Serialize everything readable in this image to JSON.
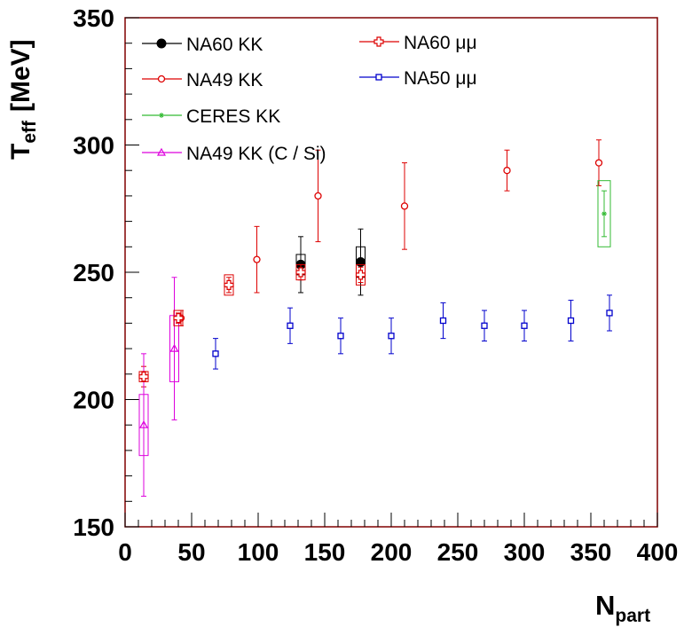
{
  "chart_data": {
    "type": "scatter",
    "title": "",
    "xlabel": {
      "main": "N",
      "sub": "part"
    },
    "ylabel": {
      "main": "T",
      "sub": "eff",
      "unit": "[MeV]"
    },
    "xlim": [
      0,
      400
    ],
    "ylim": [
      150,
      350
    ],
    "xticks": [
      0,
      50,
      100,
      150,
      200,
      250,
      300,
      350,
      400
    ],
    "yticks": [
      150,
      200,
      250,
      300,
      350
    ],
    "grid": false,
    "frame_color": "#800000",
    "series": [
      {
        "name": "NA60 KK",
        "color": "#000000",
        "marker": "filled-circle",
        "points": [
          {
            "x": 132,
            "y": 253,
            "err": 11,
            "sys": 4
          },
          {
            "x": 177,
            "y": 254,
            "err": 13,
            "sys": 6
          }
        ]
      },
      {
        "name": "NA49 KK",
        "color": "#dd0000",
        "marker": "open-circle",
        "points": [
          {
            "x": 14,
            "y": 209,
            "err": 4
          },
          {
            "x": 42,
            "y": 232,
            "err": 3
          },
          {
            "x": 99,
            "y": 255,
            "err": 13
          },
          {
            "x": 145,
            "y": 280,
            "err": 18
          },
          {
            "x": 210,
            "y": 276,
            "err": 17
          },
          {
            "x": 287,
            "y": 290,
            "err": 8
          },
          {
            "x": 356,
            "y": 293,
            "err": 9
          }
        ]
      },
      {
        "name": "CERES KK",
        "color": "#33bb33",
        "marker": "star",
        "points": [
          {
            "x": 360,
            "y": 273,
            "err": 9,
            "sys": 13
          }
        ]
      },
      {
        "name": "NA49 KK (C / Si)",
        "color": "#dd00dd",
        "marker": "open-triangle",
        "points": [
          {
            "x": 14,
            "y": 190,
            "err": 28,
            "sys": 12
          },
          {
            "x": 37,
            "y": 220,
            "err": 28,
            "sys": 13
          }
        ]
      },
      {
        "name": "NA60 μμ",
        "color": "#dd0000",
        "marker": "open-cross",
        "points": [
          {
            "x": 14,
            "y": 209,
            "err": 2,
            "sys": 2
          },
          {
            "x": 40,
            "y": 232,
            "err": 2,
            "sys": 3
          },
          {
            "x": 78,
            "y": 245,
            "err": 3,
            "sys": 4
          },
          {
            "x": 132,
            "y": 250,
            "err": 3,
            "sys": 3
          },
          {
            "x": 177,
            "y": 249,
            "err": 3,
            "sys": 4
          }
        ]
      },
      {
        "name": "NA50 μμ",
        "color": "#0000cc",
        "marker": "open-square",
        "points": [
          {
            "x": 68,
            "y": 218,
            "err": 6
          },
          {
            "x": 124,
            "y": 229,
            "err": 7
          },
          {
            "x": 162,
            "y": 225,
            "err": 7
          },
          {
            "x": 200,
            "y": 225,
            "err": 7
          },
          {
            "x": 239,
            "y": 231,
            "err": 7
          },
          {
            "x": 270,
            "y": 229,
            "err": 6
          },
          {
            "x": 300,
            "y": 229,
            "err": 6
          },
          {
            "x": 335,
            "y": 231,
            "err": 8
          },
          {
            "x": 364,
            "y": 234,
            "err": 7
          }
        ]
      }
    ]
  }
}
